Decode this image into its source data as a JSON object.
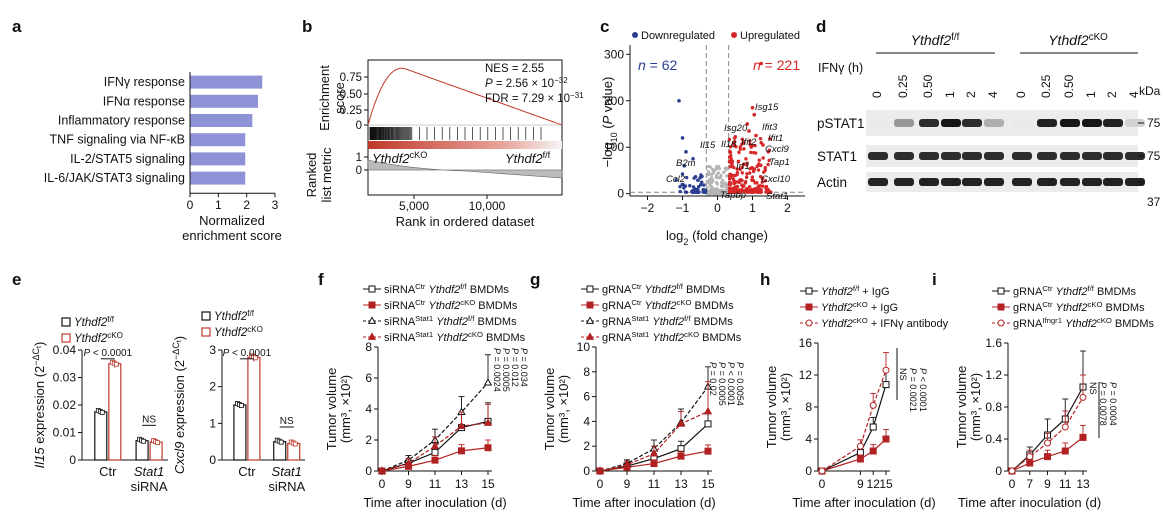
{
  "panel_labels": {
    "a": "a",
    "b": "b",
    "c": "c",
    "d": "d",
    "e": "e",
    "f": "f",
    "g": "g",
    "h": "h",
    "i": "i"
  },
  "chart_data": [
    {
      "id": "a",
      "type": "bar",
      "orientation": "horizontal",
      "categories": [
        "IFNγ response",
        "IFNα response",
        "Inflammatory response",
        "TNF signaling via NF-κB",
        "IL-2/STAT5 signaling",
        "IL-6/JAK/STAT3 signaling"
      ],
      "values": [
        2.55,
        2.4,
        2.2,
        1.95,
        1.95,
        1.95
      ],
      "xlabel_line1": "Normalized",
      "xlabel_line2": "enrichment score",
      "xlim": [
        0,
        3
      ],
      "xticks": [
        0,
        1,
        2,
        3
      ],
      "color": "#8e92d6"
    },
    {
      "id": "b",
      "type": "line",
      "ylabel_top_line1": "Enrichment",
      "ylabel_top_line2": "score",
      "ylabel_bottom_line1": "Ranked",
      "ylabel_bottom_line2": "list metric",
      "xlabel": "Rank in ordered dataset",
      "yticks_top": [
        "0.75",
        "0.50",
        "0.25",
        "0"
      ],
      "yticks_bottom": [
        "1",
        "0"
      ],
      "xticks": [
        "5,000",
        "10,000"
      ],
      "nes": "NES = 2.55",
      "p_value": "P = 2.56 × 10",
      "p_exp": "−32",
      "fdr": "FDR = 7.29 × 10",
      "fdr_exp": "−31",
      "label_left": "Ythdf2",
      "label_left_sup": "cKO",
      "label_right": "Ythdf2",
      "label_right_sup": "f/f",
      "curve_color": "#c0392b"
    },
    {
      "id": "c",
      "type": "scatter",
      "legend_down": "Downregulated",
      "legend_up": "Upregulated",
      "n_down": "n = 62",
      "n_up": "n = 221",
      "xlabel": "log",
      "xlabel_sub": "2",
      "xlabel_rest": " (fold change)",
      "ylabel": "−log",
      "ylabel_sub": "10",
      "ylabel_rest": " (P value)",
      "xticks": [
        -2,
        -1,
        0,
        1,
        2
      ],
      "yticks": [
        0,
        100,
        200,
        300
      ],
      "xlim": [
        -2.5,
        2.5
      ],
      "ylim": [
        -5,
        320
      ],
      "genes": [
        "Isg15",
        "Ifit3",
        "Isg20",
        "Ifit1",
        "Ifit2",
        "Il15",
        "Il18",
        "Cxcl9",
        "Tap1",
        "B2m",
        "Irf1",
        "Cxcl10",
        "Ccl2",
        "Tapbp",
        "Stat1"
      ],
      "down_color": "#2c3e8f",
      "up_color": "#d62728"
    },
    {
      "id": "d",
      "type": "table",
      "group1": "Ythdf2",
      "group1_sup": "f/f",
      "group2": "Ythdf2",
      "group2_sup": "cKO",
      "ifn_label": "IFNγ (h)",
      "timepoints": [
        "0",
        "0.25",
        "0.50",
        "1",
        "2",
        "4",
        "0",
        "0.25",
        "0.50",
        "1",
        "2",
        "4"
      ],
      "kda_label": "kDa",
      "bands": [
        {
          "name": "pSTAT1",
          "kda": "75",
          "intensity": [
            0.05,
            0.4,
            0.85,
            0.95,
            0.85,
            0.3,
            0.05,
            0.9,
            0.95,
            0.95,
            0.9,
            0.15
          ]
        },
        {
          "name": "STAT1",
          "kda": "75",
          "intensity": [
            0.85,
            0.85,
            0.85,
            0.85,
            0.85,
            0.85,
            0.85,
            0.85,
            0.85,
            0.85,
            0.85,
            0.85
          ]
        },
        {
          "name": "Actin",
          "kda": "37",
          "intensity": [
            0.9,
            0.9,
            0.9,
            0.9,
            0.9,
            0.9,
            0.9,
            0.9,
            0.9,
            0.9,
            0.9,
            0.9
          ]
        }
      ]
    },
    {
      "id": "e1",
      "type": "bar",
      "ylabel_gene": "Il15",
      "ylabel_rest": " expression (2",
      "ylabel_sup": "−ΔC",
      "ylabel_sub": "t",
      "ylabel_end": ")",
      "categories": [
        "Ctr",
        "Stat1"
      ],
      "category_sub": "siRNA",
      "series": [
        {
          "name": "Ythdf2",
          "sup": "f/f",
          "values": [
            0.0175,
            0.007
          ],
          "color": "#111111"
        },
        {
          "name": "Ythdf2",
          "sup": "cKO",
          "values": [
            0.035,
            0.0065
          ],
          "color": "#c0392b"
        }
      ],
      "ylim": [
        0,
        0.04
      ],
      "yticks": [
        "0",
        "0.01",
        "0.02",
        "0.03",
        "0.04"
      ],
      "p_label": "P < 0.0001",
      "ns_label": "NS"
    },
    {
      "id": "e2",
      "type": "bar",
      "ylabel_gene": "Cxcl9",
      "ylabel_rest": " expression (2",
      "ylabel_sup": "−ΔC",
      "ylabel_sub": "t",
      "ylabel_end": ")",
      "categories": [
        "Ctr",
        "Stat1"
      ],
      "category_sub": "siRNA",
      "series": [
        {
          "name": "Ythdf2",
          "sup": "f/f",
          "values": [
            1.5,
            0.5
          ],
          "color": "#111111"
        },
        {
          "name": "Ythdf2",
          "sup": "cKO",
          "values": [
            2.8,
            0.45
          ],
          "color": "#c0392b"
        }
      ],
      "ylim": [
        0,
        3
      ],
      "yticks": [
        "0",
        "1",
        "2",
        "3"
      ],
      "p_label": "P < 0.0001",
      "ns_label": "NS"
    },
    {
      "id": "f",
      "type": "line",
      "x": [
        0,
        9,
        11,
        13,
        15
      ],
      "xticks": [
        "0",
        "9",
        "11",
        "13",
        "15"
      ],
      "ylim": [
        0,
        8
      ],
      "yticks": [
        "0",
        "2",
        "4",
        "6",
        "8"
      ],
      "xlabel": "Time after inoculation (d)",
      "ylabel1": "Tumor volume",
      "ylabel2": "(mm³, ×10²)",
      "series": [
        {
          "prefix": "siRNA",
          "prefix_sup": "Ctr",
          "gene": "Ythdf2",
          "gene_sup": "f/f",
          "suffix": "BMDMs",
          "values": [
            0,
            0.5,
            1.2,
            2.8,
            3.2
          ],
          "err": [
            0,
            0.3,
            0.6,
            0.9,
            1.2
          ],
          "color": "#111111",
          "marker": "square",
          "filled": false,
          "dash": false
        },
        {
          "prefix": "siRNA",
          "prefix_sup": "Ctr",
          "gene": "Ythdf2",
          "gene_sup": "cKO",
          "suffix": "BMDMs",
          "values": [
            0,
            0.3,
            0.7,
            1.3,
            1.5
          ],
          "err": [
            0,
            0.2,
            0.3,
            0.4,
            0.5
          ],
          "color": "#b22222",
          "marker": "square",
          "filled": true,
          "dash": false
        },
        {
          "prefix": "siRNA",
          "prefix_sup": "Stat1",
          "gene": "Ythdf2",
          "gene_sup": "f/f",
          "suffix": "BMDMs",
          "values": [
            0,
            0.7,
            2.0,
            3.8,
            5.7
          ],
          "err": [
            0,
            0.3,
            0.7,
            1.0,
            1.8
          ],
          "color": "#111111",
          "marker": "triangle",
          "filled": false,
          "dash": true
        },
        {
          "prefix": "siRNA",
          "prefix_sup": "Stat1",
          "gene": "Ythdf2",
          "gene_sup": "cKO",
          "suffix": "BMDMs",
          "values": [
            0,
            0.5,
            1.6,
            2.9,
            3.1
          ],
          "err": [
            0,
            0.3,
            0.6,
            0.9,
            1.2
          ],
          "color": "#b22222",
          "marker": "triangle",
          "filled": true,
          "dash": true
        }
      ],
      "pvals": [
        "P = 0.0024",
        "P = 0.0005",
        "P = 0.012",
        "P = 0.034"
      ]
    },
    {
      "id": "g",
      "type": "line",
      "x": [
        0,
        9,
        11,
        13,
        15
      ],
      "xticks": [
        "0",
        "9",
        "11",
        "13",
        "15"
      ],
      "ylim": [
        0,
        10
      ],
      "yticks": [
        "0",
        "2",
        "4",
        "6",
        "8",
        "10"
      ],
      "xlabel": "Time after inoculation (d)",
      "ylabel1": "Tumor volume",
      "ylabel2": "(mm³, ×10²)",
      "series": [
        {
          "prefix": "gRNA",
          "prefix_sup": "Ctr",
          "gene": "Ythdf2",
          "gene_sup": "f/f",
          "suffix": "BMDMs",
          "values": [
            0,
            0.4,
            1.0,
            1.8,
            3.8
          ],
          "err": [
            0,
            0.2,
            0.4,
            0.6,
            0.9
          ],
          "color": "#111111",
          "marker": "square",
          "filled": false,
          "dash": false
        },
        {
          "prefix": "gRNA",
          "prefix_sup": "Ctr",
          "gene": "Ythdf2",
          "gene_sup": "cKO",
          "suffix": "BMDMs",
          "values": [
            0,
            0.3,
            0.6,
            1.2,
            1.6
          ],
          "err": [
            0,
            0.2,
            0.3,
            0.4,
            0.5
          ],
          "color": "#b22222",
          "marker": "square",
          "filled": true,
          "dash": false
        },
        {
          "prefix": "gRNA",
          "prefix_sup": "Stat1",
          "gene": "Ythdf2",
          "gene_sup": "f/f",
          "suffix": "BMDMs",
          "values": [
            0,
            0.6,
            1.8,
            3.9,
            6.8
          ],
          "err": [
            0,
            0.3,
            0.7,
            1.1,
            1.6
          ],
          "color": "#111111",
          "marker": "triangle",
          "filled": false,
          "dash": true
        },
        {
          "prefix": "gRNA",
          "prefix_sup": "Stat1",
          "gene": "Ythdf2",
          "gene_sup": "cKO",
          "suffix": "BMDMs",
          "values": [
            0,
            0.5,
            1.4,
            3.8,
            4.8
          ],
          "err": [
            0,
            0.3,
            0.6,
            1.0,
            2.4
          ],
          "color": "#b22222",
          "marker": "triangle",
          "filled": true,
          "dash": true
        }
      ],
      "pvals": [
        "P = 0.02",
        "P = 0.0005",
        "P < 0.0001",
        "P = 0.0054"
      ]
    },
    {
      "id": "h",
      "type": "line",
      "x": [
        0,
        9,
        12,
        15
      ],
      "xticks": [
        "0",
        "9",
        "12",
        "15"
      ],
      "ylim": [
        0,
        16
      ],
      "yticks": [
        "0",
        "4",
        "8",
        "12",
        "16"
      ],
      "xlabel": "Time after inoculation (d)",
      "ylabel1": "Tumor volume",
      "ylabel2": "(mm³, ×10²)",
      "series": [
        {
          "gene": "Ythdf2",
          "gene_sup": "f/f",
          "suffix": " + IgG",
          "values": [
            0,
            2.3,
            5.5,
            10.8
          ],
          "err": [
            0,
            0.6,
            1.2,
            2.0
          ],
          "color": "#111111",
          "marker": "square",
          "filled": false,
          "dash": false
        },
        {
          "gene": "Ythdf2",
          "gene_sup": "cKO",
          "suffix": " + IgG",
          "values": [
            0,
            1.5,
            2.5,
            4.0
          ],
          "err": [
            0,
            0.5,
            0.8,
            1.2
          ],
          "color": "#b22222",
          "marker": "square",
          "filled": true,
          "dash": false
        },
        {
          "gene": "Ythdf2",
          "gene_sup": "cKO",
          "suffix": " + IFNγ antibody",
          "values": [
            0,
            3.1,
            8.2,
            12.6
          ],
          "err": [
            0,
            0.8,
            1.5,
            2.2
          ],
          "color": "#b22222",
          "marker": "circle",
          "filled": false,
          "dash": true
        }
      ],
      "pvals": [
        "NS",
        "P = 0.0021",
        "P < 0.0001"
      ]
    },
    {
      "id": "i",
      "type": "line",
      "x": [
        0,
        7,
        9,
        11,
        13
      ],
      "xticks": [
        "0",
        "7",
        "9",
        "11",
        "13"
      ],
      "ylim": [
        0,
        1.6
      ],
      "yticks": [
        "0",
        "0.4",
        "0.8",
        "1.2",
        "1.6"
      ],
      "xlabel": "Time after inoculation (d)",
      "ylabel1": "Tumor volume",
      "ylabel2": "(mm³, ×10²)",
      "series": [
        {
          "prefix": "gRNA",
          "prefix_sup": "Ctr",
          "gene": "Ythdf2",
          "gene_sup": "f/f",
          "suffix": "BMDMs",
          "values": [
            0,
            0.2,
            0.45,
            0.65,
            1.05
          ],
          "err": [
            0,
            0.1,
            0.2,
            0.25,
            0.45
          ],
          "color": "#111111",
          "marker": "square",
          "filled": false,
          "dash": false
        },
        {
          "prefix": "gRNA",
          "prefix_sup": "Ctr",
          "gene": "Ythdf2",
          "gene_sup": "cKO",
          "suffix": "BMDMs",
          "values": [
            0,
            0.1,
            0.18,
            0.25,
            0.42
          ],
          "err": [
            0,
            0.05,
            0.08,
            0.1,
            0.15
          ],
          "color": "#b22222",
          "marker": "square",
          "filled": true,
          "dash": false
        },
        {
          "prefix": "gRNA",
          "prefix_sup": "Ifngr1",
          "gene": "Ythdf2",
          "gene_sup": "cKO",
          "suffix": "BMDMs",
          "values": [
            0,
            0.18,
            0.35,
            0.55,
            0.92
          ],
          "err": [
            0,
            0.08,
            0.12,
            0.2,
            0.28
          ],
          "color": "#b22222",
          "marker": "circle",
          "filled": false,
          "dash": true
        }
      ],
      "pvals": [
        "NS",
        "P = 0.0078",
        "P = 0.0004"
      ]
    }
  ]
}
